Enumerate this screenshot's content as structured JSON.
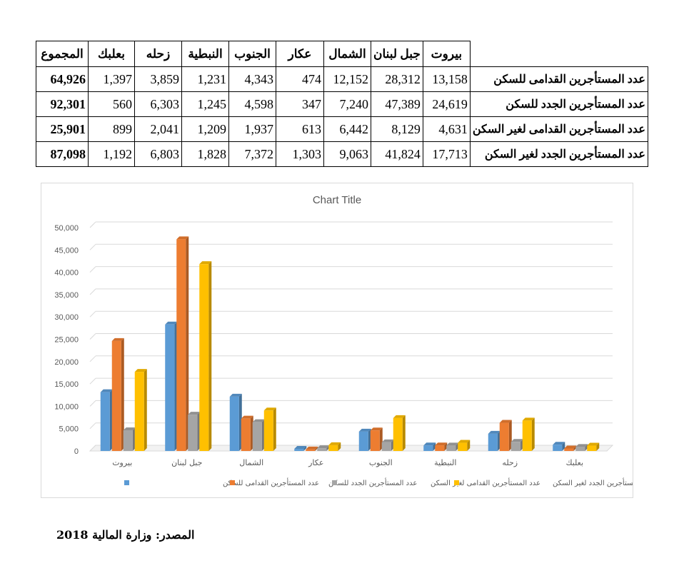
{
  "table": {
    "headers": [
      "المجموع",
      "بعلبك",
      "زحله",
      "النبطية",
      "الجنوب",
      "عكار",
      "الشمال",
      "جبل لبنان",
      "بيروت"
    ],
    "rows": [
      {
        "label": "عدد المستأجرين القدامى للسكن",
        "cells": [
          "64,926",
          "1,397",
          "3,859",
          "1,231",
          "4,343",
          "474",
          "12,152",
          "28,312",
          "13,158"
        ]
      },
      {
        "label": "عدد المستأجرين الجدد للسكن",
        "cells": [
          "92,301",
          "560",
          "6,303",
          "1,245",
          "4,598",
          "347",
          "7,240",
          "47,389",
          "24,619"
        ]
      },
      {
        "label": "عدد المستأجرين القدامى  لغير السكن",
        "cells": [
          "25,901",
          "899",
          "2,041",
          "1,209",
          "1,937",
          "613",
          "6,442",
          "8,129",
          "4,631"
        ]
      },
      {
        "label": "عدد المستأجرين الجدد لغير السكن",
        "cells": [
          "87,098",
          "1,192",
          "6,803",
          "1,828",
          "7,372",
          "1,303",
          "9,063",
          "41,824",
          "17,713"
        ]
      }
    ]
  },
  "chart_data": {
    "type": "bar",
    "title": "Chart Title",
    "categories": [
      "بيروت",
      "جبل لبنان",
      "الشمال",
      "عكار",
      "الجنوب",
      "النبطية",
      "زحله",
      "بعلبك"
    ],
    "series": [
      {
        "name": "عدد المستأجرين القدامى للسكن",
        "color": "#5b9bd5",
        "values": [
          13158,
          28312,
          12152,
          474,
          4343,
          1231,
          3859,
          1397
        ]
      },
      {
        "name": "عدد المستأجرين الجدد للسكن",
        "color": "#ed7d31",
        "values": [
          24619,
          47389,
          7240,
          347,
          4598,
          1245,
          6303,
          560
        ]
      },
      {
        "name": "عدد المستأجرين القدامى  لغير السكن",
        "color": "#a5a5a5",
        "values": [
          4631,
          8129,
          6442,
          613,
          1937,
          1209,
          2041,
          899
        ]
      },
      {
        "name": "عدد المستأجرين الجدد لغير السكن",
        "color": "#ffc000",
        "values": [
          17713,
          41824,
          9063,
          1303,
          7372,
          1828,
          6803,
          1192
        ]
      }
    ],
    "ylim": [
      0,
      50000
    ],
    "yticks": [
      "0",
      "5,000",
      "10,000",
      "15,000",
      "20,000",
      "25,000",
      "30,000",
      "35,000",
      "40,000",
      "45,000",
      "50,000"
    ],
    "grid": true,
    "legend": "bottom",
    "style": "3d-clustered-column"
  },
  "source": "المصدر: وزارة المالية 2018"
}
